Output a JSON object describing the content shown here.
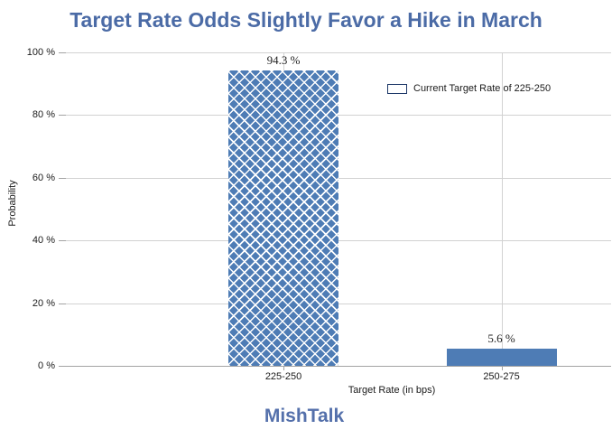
{
  "page": {
    "title": "Target Rate Odds Slightly Favor a Hike in March",
    "footer_brand": "MishTalk"
  },
  "legend": {
    "label": "Current Target Rate of 225-250"
  },
  "colors": {
    "bar_blue": "#4e7cb5",
    "title_blue": "#4b6ba6",
    "footer_blue": "#5470ab",
    "gridline_gray": "#d2d2d2",
    "axis_gray": "#a3a3a3",
    "legend_swatch_border": "#1d3868"
  },
  "chart_data": {
    "type": "bar",
    "title": "Target Rate Odds Slightly Favor a Hike in March",
    "categories": [
      "225-250",
      "250-275"
    ],
    "values": [
      94.3,
      5.6
    ],
    "value_labels": [
      "94.3 %",
      "5.6 %"
    ],
    "series": [
      {
        "name": "Current Target Rate of 225-250",
        "values": [
          94.3,
          5.6
        ]
      }
    ],
    "xlabel": "Target Rate (in bps)",
    "ylabel": "Probability",
    "ylim": [
      0,
      100
    ],
    "yticks": [
      0,
      20,
      40,
      60,
      80,
      100
    ],
    "ytick_labels": [
      "0 %",
      "20 %",
      "40 %",
      "60 %",
      "80 %",
      "100 %"
    ],
    "grid": true,
    "legend_position": "top-right",
    "bar_styles": [
      "crosshatch",
      "solid"
    ],
    "annotations": []
  }
}
